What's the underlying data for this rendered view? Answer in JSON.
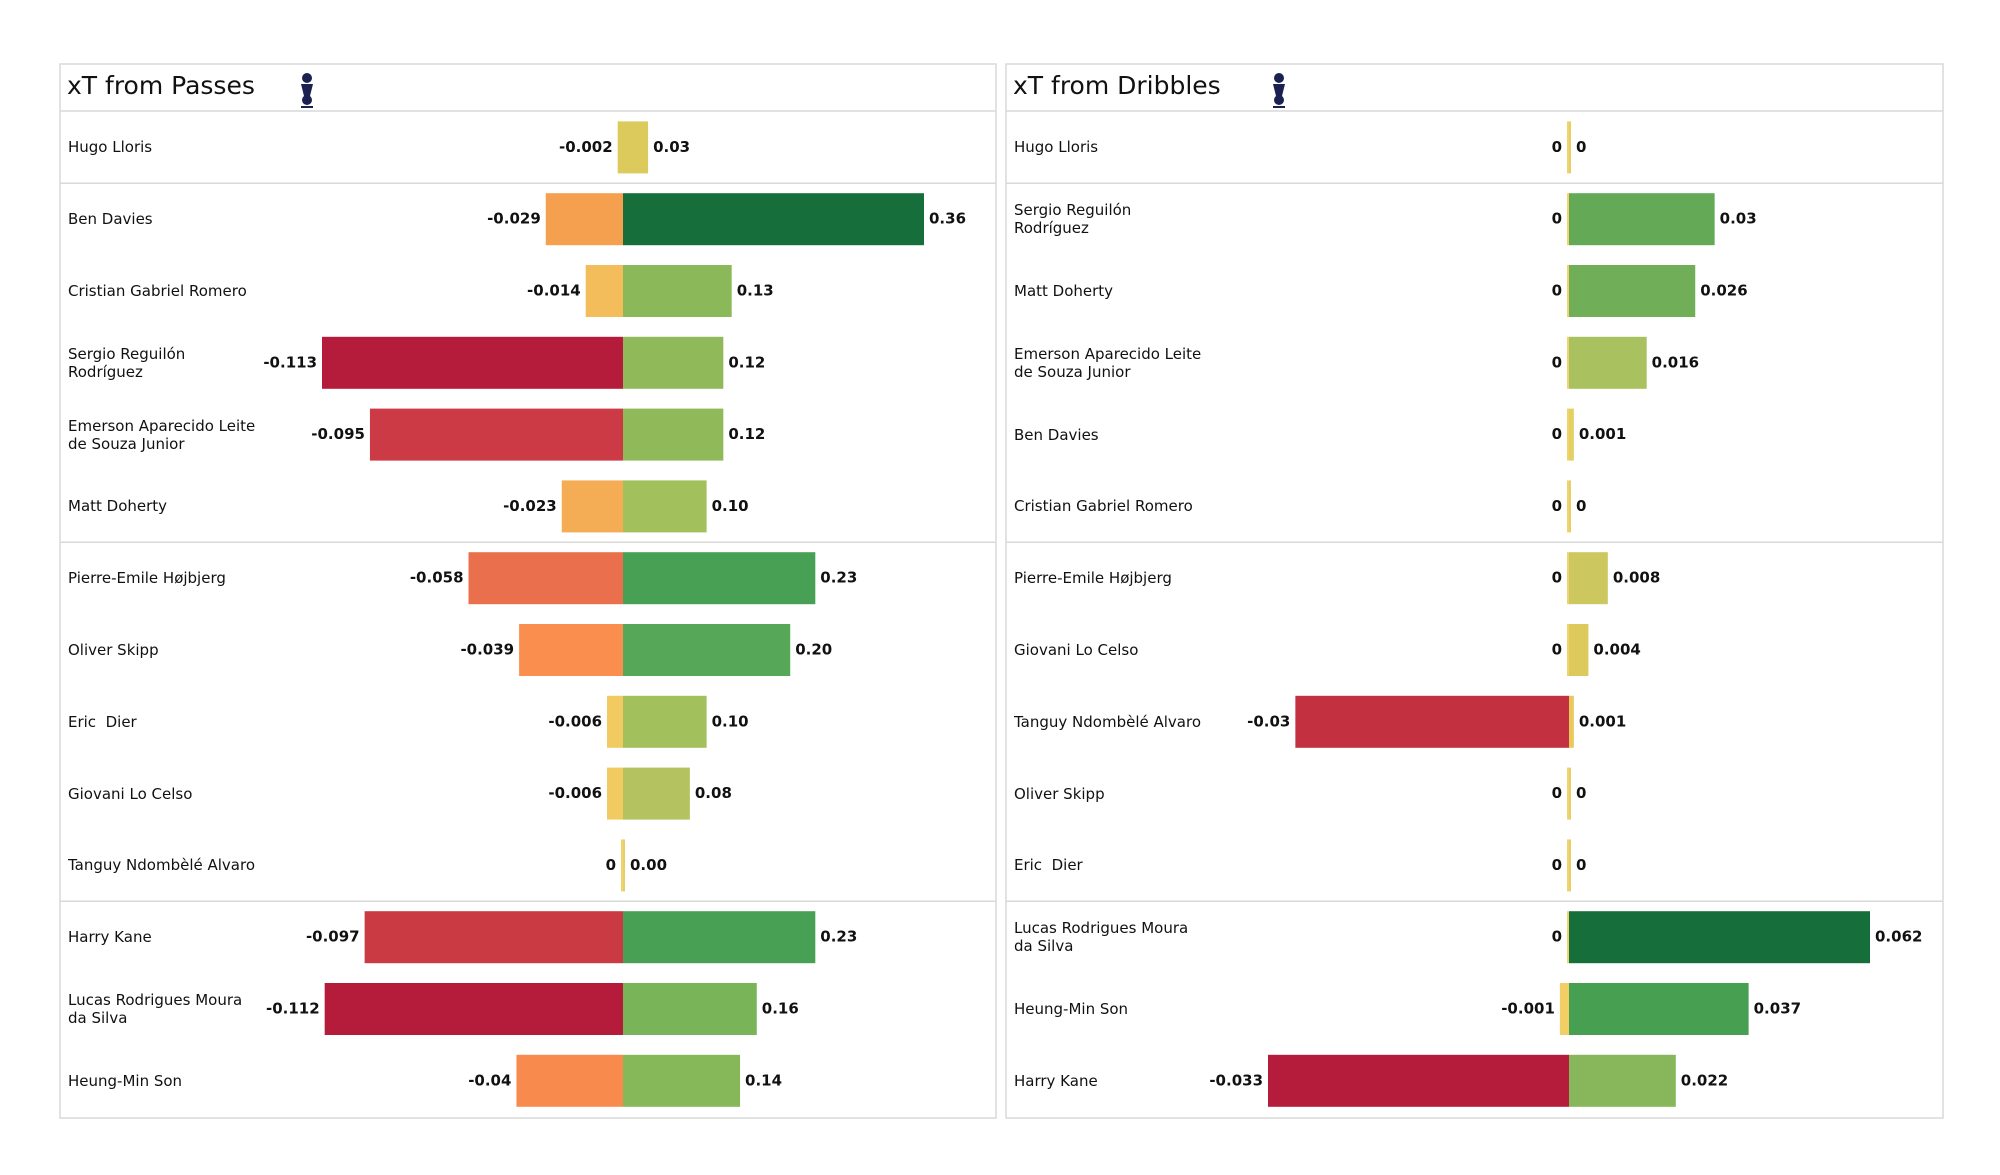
{
  "chart_data": [
    {
      "type": "bar",
      "orientation": "horizontal",
      "title": "xT from Passes",
      "categories": [
        "Hugo Lloris",
        "Ben Davies",
        "Cristian Gabriel Romero",
        "Sergio Reguilón\nRodríguez",
        "Emerson Aparecido Leite\nde Souza Junior",
        "Matt Doherty",
        "Pierre-Emile Højbjerg",
        "Oliver Skipp",
        "Eric  Dier",
        "Giovani Lo Celso",
        "Tanguy Ndombèlé Alvaro",
        "Harry Kane",
        "Lucas Rodrigues Moura\nda Silva",
        "Heung-Min Son"
      ],
      "series": [
        {
          "values": [
            -0.002,
            -0.029,
            -0.014,
            -0.113,
            -0.095,
            -0.023,
            -0.058,
            -0.039,
            -0.006,
            -0.006,
            0,
            -0.097,
            -0.112,
            -0.04
          ],
          "value_labels": [
            "-0.002",
            "-0.029",
            "-0.014",
            "-0.113",
            "-0.095",
            "-0.023",
            "-0.058",
            "-0.039",
            "-0.006",
            "-0.006",
            "0",
            "-0.097",
            "-0.112",
            "-0.04"
          ],
          "colors": [
            "#dccb5c",
            "#f5a04f",
            "#f3bd5b",
            "#b51c3c",
            "#cc3b45",
            "#f4ad55",
            "#ea6f4d",
            "#f98e4f",
            "#f2ca62",
            "#f2ca62",
            "#f2d36b",
            "#c93a43",
            "#b51c3c",
            "#f98a4e"
          ]
        },
        {
          "values": [
            0.03,
            0.36,
            0.13,
            0.12,
            0.12,
            0.1,
            0.23,
            0.2,
            0.1,
            0.08,
            0,
            0.23,
            0.16,
            0.14
          ],
          "value_labels": [
            "0.03",
            "0.36",
            "0.13",
            "0.12",
            "0.12",
            "0.10",
            "0.23",
            "0.20",
            "0.10",
            "0.08",
            "0.00",
            "0.23",
            "0.16",
            "0.14"
          ],
          "colors": [
            "#dccb5c",
            "#166f3a",
            "#8bb858",
            "#90ba5a",
            "#90ba5a",
            "#a2c05c",
            "#48a054",
            "#56a757",
            "#a2c05c",
            "#b4c35f",
            "#e3d06a",
            "#48a054",
            "#79b558",
            "#86b85a"
          ]
        }
      ]
    },
    {
      "type": "bar",
      "orientation": "horizontal",
      "title": "xT from Dribbles",
      "categories": [
        "Hugo Lloris",
        "Sergio Reguilón\nRodríguez",
        "Matt Doherty",
        "Emerson Aparecido Leite\nde Souza Junior",
        "Ben Davies",
        "Cristian Gabriel Romero",
        "Pierre-Emile Højbjerg",
        "Giovani Lo Celso",
        "Tanguy Ndombèlé Alvaro",
        "Oliver Skipp",
        "Eric  Dier",
        "Lucas Rodrigues Moura\nda Silva",
        "Heung-Min Son",
        "Harry Kane"
      ],
      "series": [
        {
          "values": [
            0,
            0,
            0,
            0,
            0,
            0,
            0,
            0,
            -0.03,
            0,
            0,
            0,
            -0.001,
            -0.033
          ],
          "value_labels": [
            "0",
            "0",
            "0",
            "0",
            "0",
            "0",
            "0",
            "0",
            "-0.03",
            "0",
            "0",
            "0",
            "-0.001",
            "-0.033"
          ],
          "colors": [
            "#f2d36b",
            "#f2d36b",
            "#f2d36b",
            "#f2d36b",
            "#f2d36b",
            "#f2d36b",
            "#f2d36b",
            "#f2d36b",
            "#c3303f",
            "#f2d36b",
            "#f2d36b",
            "#f2d36b",
            "#f2cf64",
            "#b51c3c"
          ]
        },
        {
          "values": [
            0,
            0.03,
            0.026,
            0.016,
            0.001,
            0,
            0.008,
            0.004,
            0.001,
            0,
            0,
            0.062,
            0.037,
            0.022
          ],
          "value_labels": [
            "0",
            "0.03",
            "0.026",
            "0.016",
            "0.001",
            "0",
            "0.008",
            "0.004",
            "0.001",
            "0",
            "0",
            "0.062",
            "0.037",
            "0.022"
          ],
          "colors": [
            "#e3d06a",
            "#64aa56",
            "#70ae57",
            "#a9c15e",
            "#e3cf62",
            "#e3d06a",
            "#cdc760",
            "#dccb5c",
            "#e8c95c",
            "#e3d06a",
            "#e3d06a",
            "#166f3a",
            "#47a052",
            "#87b75a"
          ]
        }
      ]
    }
  ]
}
